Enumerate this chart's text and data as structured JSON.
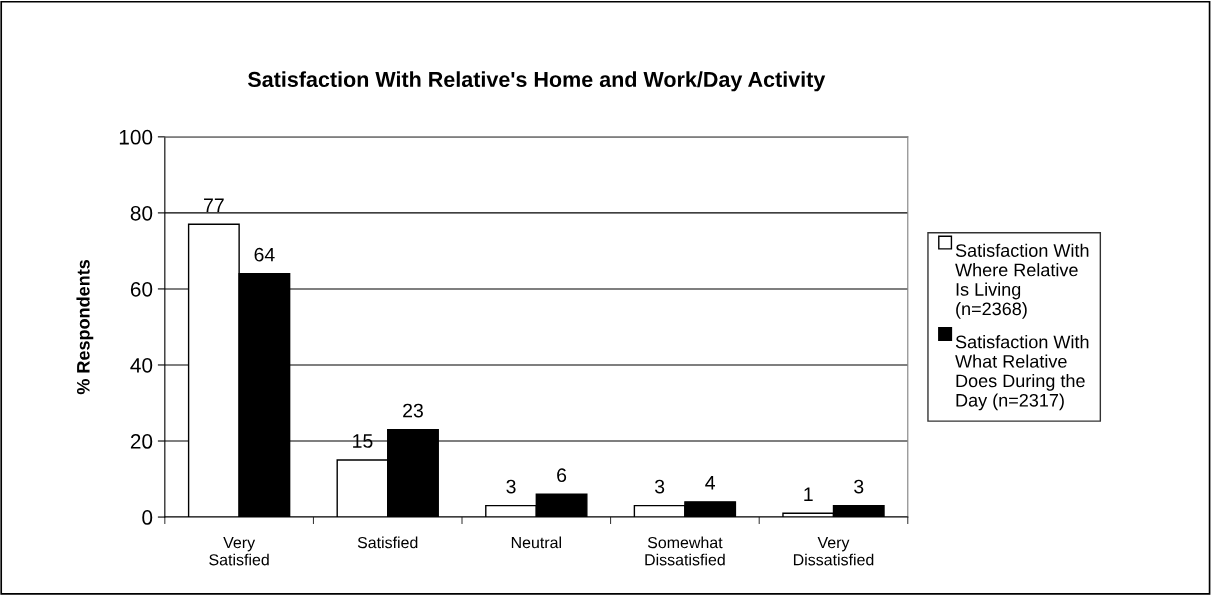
{
  "chart_data": {
    "type": "bar",
    "title": "Satisfaction With Relative's Home and Work/Day Activity",
    "ylabel": "% Respondents",
    "categories": [
      "Very\nSatisfied",
      "Satisfied",
      "Neutral",
      "Somewhat\nDissatisfied",
      "Very\nDissatisfied"
    ],
    "series": [
      {
        "name": "Satisfaction With\nWhere Relative\nIs Living\n(n=2368)",
        "color": "#ffffff",
        "values": [
          77,
          15,
          3,
          3,
          1
        ]
      },
      {
        "name": "Satisfaction With\nWhat Relative\nDoes During the\nDay (n=2317)",
        "color": "#000000",
        "values": [
          64,
          23,
          6,
          4,
          3
        ]
      }
    ],
    "ylim": [
      0,
      100
    ],
    "yticks": [
      0,
      20,
      40,
      60,
      80,
      100
    ],
    "grid": "y",
    "legend": "right",
    "data_labels": true
  }
}
